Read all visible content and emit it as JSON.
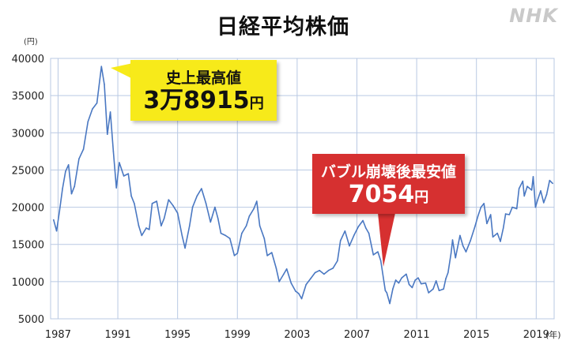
{
  "title": "日経平均株価",
  "logo": "NHK",
  "colors": {
    "line": "#4a78c2",
    "grid": "#b9c9e3",
    "peak_box": "#f7ea1a",
    "low_box": "#d63030"
  },
  "chart_data": {
    "type": "line",
    "title": "日経平均株価",
    "ylabel_unit": "(円)",
    "xlabel_unit": "(年)",
    "ylim": [
      5000,
      40000
    ],
    "xlim": [
      1986.5,
      2020.2
    ],
    "yticks": [
      5000,
      10000,
      15000,
      20000,
      25000,
      30000,
      35000,
      40000
    ],
    "xticks": [
      1987,
      1991,
      1995,
      1999,
      2003,
      2007,
      2011,
      2015,
      2019
    ],
    "grid": true,
    "series": [
      {
        "values": [
          [
            1986.7,
            18300
          ],
          [
            1986.9,
            16800
          ],
          [
            1987.1,
            19500
          ],
          [
            1987.3,
            22500
          ],
          [
            1987.5,
            24800
          ],
          [
            1987.7,
            25700
          ],
          [
            1987.9,
            21800
          ],
          [
            1988.1,
            22800
          ],
          [
            1988.4,
            26500
          ],
          [
            1988.7,
            27800
          ],
          [
            1989.0,
            31500
          ],
          [
            1989.3,
            33200
          ],
          [
            1989.6,
            34000
          ],
          [
            1989.9,
            38915
          ],
          [
            1990.1,
            36500
          ],
          [
            1990.3,
            29800
          ],
          [
            1990.5,
            32800
          ],
          [
            1990.7,
            27500
          ],
          [
            1990.9,
            22600
          ],
          [
            1991.1,
            26000
          ],
          [
            1991.4,
            24200
          ],
          [
            1991.7,
            24500
          ],
          [
            1991.9,
            21500
          ],
          [
            1992.1,
            20500
          ],
          [
            1992.4,
            17500
          ],
          [
            1992.6,
            16200
          ],
          [
            1992.9,
            17200
          ],
          [
            1993.1,
            17000
          ],
          [
            1993.3,
            20500
          ],
          [
            1993.6,
            20800
          ],
          [
            1993.9,
            17500
          ],
          [
            1994.1,
            18500
          ],
          [
            1994.4,
            21000
          ],
          [
            1994.7,
            20200
          ],
          [
            1995.0,
            19200
          ],
          [
            1995.3,
            16200
          ],
          [
            1995.5,
            14500
          ],
          [
            1995.8,
            17500
          ],
          [
            1996.0,
            20000
          ],
          [
            1996.3,
            21500
          ],
          [
            1996.6,
            22500
          ],
          [
            1996.9,
            20500
          ],
          [
            1997.2,
            18000
          ],
          [
            1997.5,
            20000
          ],
          [
            1997.7,
            18500
          ],
          [
            1997.9,
            16500
          ],
          [
            1998.2,
            16200
          ],
          [
            1998.5,
            15800
          ],
          [
            1998.8,
            13500
          ],
          [
            1999.0,
            13800
          ],
          [
            1999.3,
            16500
          ],
          [
            1999.6,
            17500
          ],
          [
            1999.8,
            18800
          ],
          [
            2000.1,
            19800
          ],
          [
            2000.3,
            20800
          ],
          [
            2000.5,
            17500
          ],
          [
            2000.8,
            15800
          ],
          [
            2001.0,
            13500
          ],
          [
            2001.3,
            13900
          ],
          [
            2001.6,
            11800
          ],
          [
            2001.8,
            10000
          ],
          [
            2002.1,
            11000
          ],
          [
            2002.3,
            11700
          ],
          [
            2002.6,
            9800
          ],
          [
            2002.9,
            8700
          ],
          [
            2003.1,
            8400
          ],
          [
            2003.3,
            7700
          ],
          [
            2003.6,
            9600
          ],
          [
            2003.9,
            10400
          ],
          [
            2004.2,
            11200
          ],
          [
            2004.5,
            11500
          ],
          [
            2004.8,
            11000
          ],
          [
            2005.1,
            11500
          ],
          [
            2005.4,
            11800
          ],
          [
            2005.7,
            12800
          ],
          [
            2005.9,
            15500
          ],
          [
            2006.2,
            16800
          ],
          [
            2006.5,
            14800
          ],
          [
            2006.8,
            16200
          ],
          [
            2007.1,
            17400
          ],
          [
            2007.4,
            18200
          ],
          [
            2007.6,
            17200
          ],
          [
            2007.8,
            16500
          ],
          [
            2008.1,
            13600
          ],
          [
            2008.4,
            14000
          ],
          [
            2008.6,
            12800
          ],
          [
            2008.9,
            8800
          ],
          [
            2009.0,
            8500
          ],
          [
            2009.2,
            7054
          ],
          [
            2009.4,
            9000
          ],
          [
            2009.6,
            10200
          ],
          [
            2009.8,
            9800
          ],
          [
            2010.0,
            10500
          ],
          [
            2010.3,
            11000
          ],
          [
            2010.5,
            9600
          ],
          [
            2010.7,
            9200
          ],
          [
            2010.9,
            10200
          ],
          [
            2011.1,
            10500
          ],
          [
            2011.3,
            9700
          ],
          [
            2011.6,
            9800
          ],
          [
            2011.8,
            8500
          ],
          [
            2012.1,
            9000
          ],
          [
            2012.3,
            10100
          ],
          [
            2012.5,
            8800
          ],
          [
            2012.8,
            9000
          ],
          [
            2012.95,
            10400
          ],
          [
            2013.1,
            11200
          ],
          [
            2013.3,
            13800
          ],
          [
            2013.4,
            15600
          ],
          [
            2013.6,
            13200
          ],
          [
            2013.9,
            16200
          ],
          [
            2014.1,
            14800
          ],
          [
            2014.3,
            14000
          ],
          [
            2014.6,
            15500
          ],
          [
            2014.9,
            17400
          ],
          [
            2015.1,
            18800
          ],
          [
            2015.3,
            20000
          ],
          [
            2015.5,
            20500
          ],
          [
            2015.7,
            17800
          ],
          [
            2015.95,
            19000
          ],
          [
            2016.1,
            16000
          ],
          [
            2016.4,
            16500
          ],
          [
            2016.6,
            15400
          ],
          [
            2016.8,
            17200
          ],
          [
            2016.95,
            19100
          ],
          [
            2017.2,
            19000
          ],
          [
            2017.4,
            20000
          ],
          [
            2017.7,
            19800
          ],
          [
            2017.85,
            22500
          ],
          [
            2018.1,
            23500
          ],
          [
            2018.2,
            21500
          ],
          [
            2018.4,
            22800
          ],
          [
            2018.7,
            22300
          ],
          [
            2018.8,
            24100
          ],
          [
            2018.95,
            20000
          ],
          [
            2019.1,
            21000
          ],
          [
            2019.3,
            22200
          ],
          [
            2019.5,
            20600
          ],
          [
            2019.7,
            21700
          ],
          [
            2019.9,
            23600
          ],
          [
            2020.1,
            23200
          ]
        ]
      }
    ],
    "annotations": [
      {
        "line1": "史上最高値",
        "number": "3万8915",
        "unit": "円",
        "x": 1989.9,
        "y": 38915
      },
      {
        "line1": "バブル崩壊後最安値",
        "number": "7054",
        "unit": "円",
        "x": 2009.2,
        "y": 7054
      }
    ]
  }
}
